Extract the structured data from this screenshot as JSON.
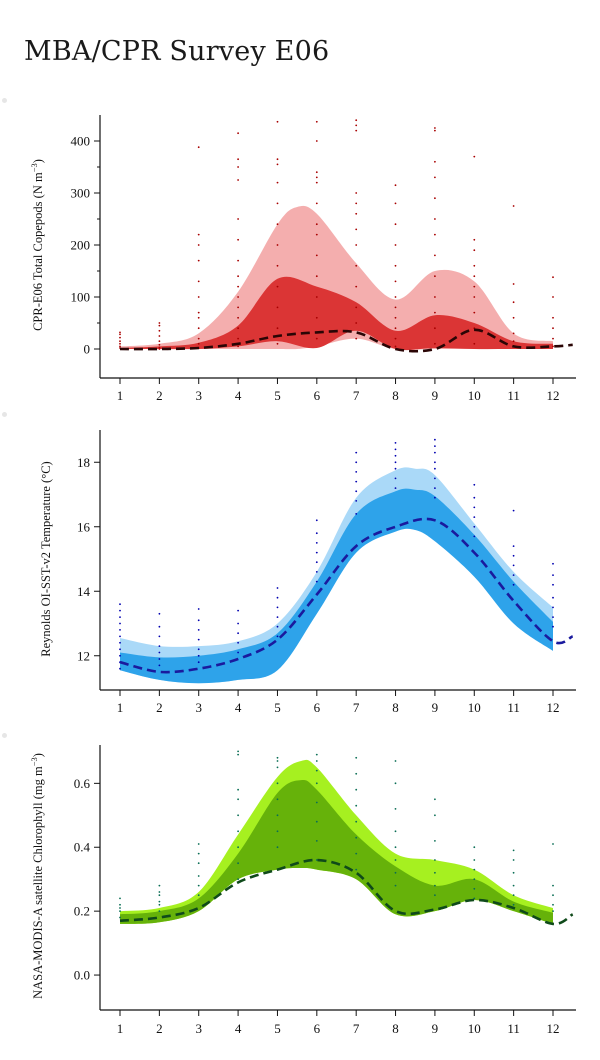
{
  "page": {
    "title": "MBA/CPR Survey E06"
  },
  "chart_data": [
    {
      "type": "area",
      "id": "copepods",
      "ylabel": "CPR-E06 Total Copepods (N m",
      "ylabel_sup": "−3",
      "ylabel_end": ")",
      "xlabel": "",
      "x_ticks": [
        1,
        2,
        3,
        4,
        5,
        6,
        7,
        8,
        9,
        10,
        11,
        12
      ],
      "y_ticks": [
        0,
        100,
        200,
        300,
        400
      ],
      "xlim": [
        0.5,
        12.5
      ],
      "ylim": [
        -50,
        450
      ],
      "colors": {
        "outer": "#f4aeae",
        "inner": "#db3535",
        "median": "#2a0505",
        "obs": "#a80000"
      },
      "series": [
        {
          "role": "outer_band",
          "x": [
            1,
            2,
            3,
            4,
            5,
            5.5,
            6,
            7,
            8,
            9,
            10,
            11,
            12
          ],
          "upper": [
            5,
            10,
            30,
            110,
            240,
            273,
            260,
            165,
            95,
            150,
            130,
            30,
            15
          ],
          "lower": [
            0,
            0,
            0,
            0,
            0,
            0,
            5,
            20,
            0,
            0,
            0,
            0,
            0
          ]
        },
        {
          "role": "inner_band",
          "x": [
            1,
            2,
            3,
            4,
            5,
            6,
            7,
            8,
            9,
            10,
            11,
            12
          ],
          "upper": [
            2,
            5,
            12,
            45,
            135,
            120,
            90,
            35,
            65,
            50,
            15,
            10
          ],
          "lower": [
            0,
            0,
            0,
            5,
            15,
            2,
            35,
            0,
            2,
            0,
            0,
            0
          ]
        },
        {
          "role": "median",
          "x": [
            1,
            2,
            3,
            4,
            5,
            6,
            7,
            8,
            9,
            10,
            11,
            12,
            12.5
          ],
          "y": [
            0,
            0,
            2,
            10,
            25,
            32,
            32,
            0,
            0,
            37,
            5,
            5,
            8
          ]
        }
      ],
      "observations": [
        {
          "x": 1,
          "y": [
            2,
            5,
            10,
            15,
            22,
            28,
            32
          ]
        },
        {
          "x": 2,
          "y": [
            0,
            3,
            8,
            15,
            25,
            35,
            45,
            50
          ]
        },
        {
          "x": 3,
          "y": [
            2,
            10,
            20,
            40,
            60,
            70,
            100,
            130,
            170,
            200,
            220,
            388
          ]
        },
        {
          "x": 4,
          "y": [
            5,
            20,
            40,
            60,
            80,
            100,
            120,
            140,
            170,
            210,
            250,
            325,
            350,
            365,
            415
          ]
        },
        {
          "x": 5,
          "y": [
            10,
            40,
            80,
            120,
            160,
            200,
            240,
            280,
            320,
            355,
            365,
            437
          ]
        },
        {
          "x": 6,
          "y": [
            20,
            60,
            100,
            140,
            180,
            220,
            240,
            280,
            320,
            330,
            340,
            400,
            437
          ]
        },
        {
          "x": 7,
          "y": [
            20,
            50,
            80,
            120,
            160,
            200,
            230,
            260,
            280,
            300,
            420,
            430,
            440
          ]
        },
        {
          "x": 8,
          "y": [
            5,
            20,
            40,
            60,
            80,
            100,
            130,
            160,
            200,
            240,
            280,
            315
          ]
        },
        {
          "x": 9,
          "y": [
            10,
            40,
            70,
            100,
            140,
            180,
            220,
            250,
            290,
            330,
            360,
            420,
            425
          ]
        },
        {
          "x": 10,
          "y": [
            10,
            40,
            70,
            100,
            120,
            140,
            160,
            190,
            210,
            370
          ]
        },
        {
          "x": 11,
          "y": [
            5,
            15,
            30,
            60,
            90,
            125,
            275
          ]
        },
        {
          "x": 12,
          "y": [
            5,
            20,
            40,
            60,
            100,
            138
          ]
        }
      ]
    },
    {
      "type": "area",
      "id": "temperature",
      "ylabel": "Reynolds OI-SST-v2 Temperature (°C)",
      "xlabel": "",
      "x_ticks": [
        1,
        2,
        3,
        4,
        5,
        6,
        7,
        8,
        9,
        10,
        11,
        12
      ],
      "y_ticks": [
        12,
        14,
        16,
        18
      ],
      "xlim": [
        0.5,
        12.5
      ],
      "ylim": [
        11,
        19
      ],
      "colors": {
        "outer": "#aad9f8",
        "inner": "#2ea3ea",
        "median": "#1a1a9e",
        "obs": "#0000b0"
      },
      "series": [
        {
          "role": "outer_band",
          "x": [
            1,
            2,
            3,
            4,
            5,
            6,
            7,
            8,
            8.5,
            9,
            10,
            11,
            12
          ],
          "upper": [
            12.55,
            12.3,
            12.3,
            12.45,
            13.0,
            14.6,
            16.9,
            17.75,
            17.8,
            17.6,
            16.1,
            14.6,
            13.5
          ],
          "lower": [
            11.55,
            11.25,
            11.15,
            11.25,
            11.55,
            13.3,
            15.2,
            15.85,
            15.9,
            15.55,
            14.45,
            13.0,
            12.15
          ]
        },
        {
          "role": "inner_band",
          "x": [
            1,
            2,
            3,
            4,
            5,
            6,
            7,
            8,
            8.5,
            9,
            10,
            11,
            12
          ],
          "upper": [
            12.1,
            11.95,
            12.0,
            12.2,
            12.7,
            14.3,
            16.4,
            17.1,
            17.15,
            16.95,
            15.75,
            14.3,
            13.05
          ],
          "lower": [
            11.55,
            11.25,
            11.15,
            11.25,
            11.55,
            13.3,
            15.2,
            15.85,
            15.9,
            15.55,
            14.45,
            13.0,
            12.15
          ]
        },
        {
          "role": "median",
          "x": [
            1,
            2,
            3,
            4,
            5,
            6,
            7,
            8,
            9,
            10,
            11,
            12,
            12.5
          ],
          "y": [
            11.8,
            11.5,
            11.6,
            11.9,
            12.5,
            13.9,
            15.4,
            16.0,
            16.2,
            15.2,
            13.7,
            12.45,
            12.6
          ]
        }
      ],
      "observations": [
        {
          "x": 1,
          "y": [
            11.6,
            11.8,
            12.0,
            12.2,
            12.4,
            12.6,
            12.8,
            13.0,
            13.2,
            13.4,
            13.6
          ]
        },
        {
          "x": 2,
          "y": [
            11.7,
            11.9,
            12.1,
            12.3,
            12.6,
            12.9,
            13.3
          ]
        },
        {
          "x": 3,
          "y": [
            11.8,
            12.0,
            12.2,
            12.5,
            12.8,
            13.1,
            13.45
          ]
        },
        {
          "x": 4,
          "y": [
            12.1,
            12.4,
            12.7,
            13.0,
            13.4
          ]
        },
        {
          "x": 5,
          "y": [
            12.6,
            12.9,
            13.2,
            13.5,
            13.8,
            14.1
          ]
        },
        {
          "x": 6,
          "y": [
            14.3,
            14.6,
            14.9,
            15.2,
            15.5,
            15.8,
            16.2
          ]
        },
        {
          "x": 7,
          "y": [
            16.4,
            16.8,
            17.1,
            17.4,
            17.7,
            18.0,
            18.3
          ]
        },
        {
          "x": 8,
          "y": [
            17.2,
            17.5,
            17.8,
            18.0,
            18.2,
            18.4,
            18.6
          ]
        },
        {
          "x": 9,
          "y": [
            16.9,
            17.2,
            17.5,
            17.8,
            18.0,
            18.3,
            18.5,
            18.7
          ]
        },
        {
          "x": 10,
          "y": [
            15.7,
            16.0,
            16.3,
            16.6,
            16.9,
            17.3
          ]
        },
        {
          "x": 11,
          "y": [
            14.2,
            14.5,
            14.8,
            15.1,
            15.4,
            16.5
          ]
        },
        {
          "x": 12,
          "y": [
            12.9,
            13.2,
            13.5,
            13.8,
            14.2,
            14.5,
            14.85
          ]
        }
      ]
    },
    {
      "type": "area",
      "id": "chlorophyll",
      "ylabel": "NASA-MODIS-A satellite Chlorophyll (mg m",
      "ylabel_sup": "−3",
      "ylabel_end": ")",
      "xlabel": "",
      "x_ticks": [
        1,
        2,
        3,
        4,
        5,
        6,
        7,
        8,
        9,
        10,
        11,
        12
      ],
      "y_ticks": [
        0.0,
        0.2,
        0.4,
        0.6
      ],
      "xlim": [
        0.5,
        12.5
      ],
      "ylim": [
        -0.1,
        0.72
      ],
      "colors": {
        "outer": "#a6f020",
        "inner": "#66b20a",
        "median": "#0f4a1a",
        "obs": "#0a6e55"
      },
      "series": [
        {
          "role": "outer_band",
          "x": [
            1,
            2,
            3,
            4,
            5,
            5.6,
            6,
            7,
            8,
            9,
            10,
            11,
            12
          ],
          "upper": [
            0.2,
            0.21,
            0.26,
            0.44,
            0.62,
            0.67,
            0.65,
            0.5,
            0.38,
            0.36,
            0.33,
            0.25,
            0.21
          ],
          "lower": [
            0.16,
            0.165,
            0.2,
            0.3,
            0.33,
            0.335,
            0.33,
            0.3,
            0.19,
            0.2,
            0.235,
            0.2,
            0.16
          ]
        },
        {
          "role": "inner_band",
          "x": [
            1,
            2,
            3,
            4,
            5,
            5.6,
            6,
            7,
            8,
            9,
            10,
            11,
            12
          ],
          "upper": [
            0.19,
            0.2,
            0.24,
            0.38,
            0.57,
            0.61,
            0.58,
            0.44,
            0.34,
            0.28,
            0.3,
            0.23,
            0.195
          ],
          "lower": [
            0.16,
            0.165,
            0.2,
            0.3,
            0.33,
            0.335,
            0.33,
            0.3,
            0.19,
            0.2,
            0.235,
            0.2,
            0.16
          ]
        },
        {
          "role": "median",
          "x": [
            1,
            2,
            3,
            4,
            5,
            6,
            7,
            8,
            9,
            10,
            11,
            12,
            12.5
          ],
          "y": [
            0.17,
            0.18,
            0.21,
            0.29,
            0.33,
            0.36,
            0.32,
            0.2,
            0.205,
            0.235,
            0.21,
            0.16,
            0.19
          ]
        }
      ],
      "observations": [
        {
          "x": 1,
          "y": [
            0.18,
            0.2,
            0.21,
            0.22,
            0.24
          ]
        },
        {
          "x": 2,
          "y": [
            0.2,
            0.22,
            0.23,
            0.25,
            0.26,
            0.28
          ]
        },
        {
          "x": 3,
          "y": [
            0.25,
            0.28,
            0.31,
            0.35,
            0.38,
            0.41
          ]
        },
        {
          "x": 4,
          "y": [
            0.3,
            0.35,
            0.4,
            0.45,
            0.5,
            0.55,
            0.58,
            0.69,
            0.7
          ]
        },
        {
          "x": 5,
          "y": [
            0.4,
            0.45,
            0.5,
            0.55,
            0.6,
            0.65,
            0.67,
            0.68
          ]
        },
        {
          "x": 6,
          "y": [
            0.36,
            0.42,
            0.48,
            0.54,
            0.6,
            0.64,
            0.67,
            0.69
          ]
        },
        {
          "x": 7,
          "y": [
            0.33,
            0.38,
            0.43,
            0.48,
            0.53,
            0.58,
            0.63,
            0.68
          ]
        },
        {
          "x": 8,
          "y": [
            0.28,
            0.32,
            0.36,
            0.4,
            0.45,
            0.52,
            0.6,
            0.67
          ]
        },
        {
          "x": 9,
          "y": [
            0.25,
            0.28,
            0.32,
            0.36,
            0.42,
            0.5,
            0.55
          ]
        },
        {
          "x": 10,
          "y": [
            0.24,
            0.27,
            0.3,
            0.33,
            0.36,
            0.4
          ]
        },
        {
          "x": 11,
          "y": [
            0.22,
            0.25,
            0.28,
            0.32,
            0.36,
            0.39
          ]
        },
        {
          "x": 12,
          "y": [
            0.2,
            0.22,
            0.25,
            0.28,
            0.41
          ]
        }
      ]
    }
  ]
}
